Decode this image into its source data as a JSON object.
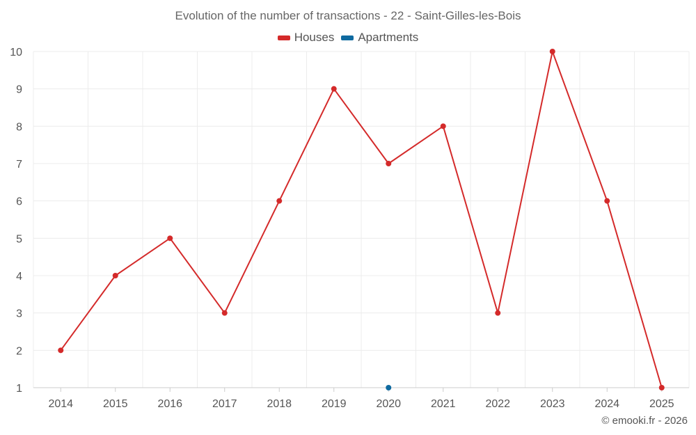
{
  "chart_data": {
    "type": "line",
    "title": "Evolution of the number of transactions - 22 - Saint-Gilles-les-Bois",
    "categories": [
      "2014",
      "2015",
      "2016",
      "2017",
      "2018",
      "2019",
      "2020",
      "2021",
      "2022",
      "2023",
      "2024",
      "2025"
    ],
    "series": [
      {
        "name": "Houses",
        "color": "#d42a2a",
        "values": [
          2,
          4,
          5,
          3,
          6,
          9,
          7,
          8,
          3,
          10,
          6,
          1
        ]
      },
      {
        "name": "Apartments",
        "color": "#0f6aa0",
        "values": [
          null,
          null,
          null,
          null,
          null,
          null,
          1,
          null,
          null,
          null,
          null,
          null
        ]
      }
    ],
    "ylim": [
      1,
      10
    ],
    "yticks": [
      "1",
      "2",
      "3",
      "4",
      "5",
      "6",
      "7",
      "8",
      "9",
      "10"
    ],
    "xlabel": "",
    "ylabel": "",
    "grid": true,
    "legend_position": "top-center"
  },
  "credit": "© emooki.fr - 2026"
}
